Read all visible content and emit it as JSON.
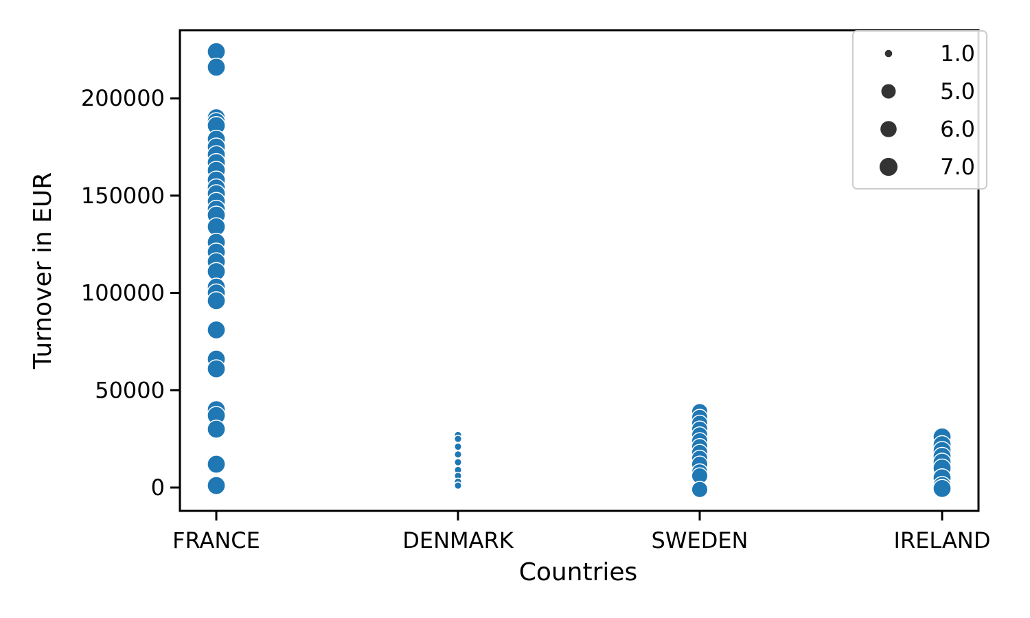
{
  "chart_data": {
    "type": "scatter",
    "xlabel": "Countries",
    "ylabel": "Turnover in EUR",
    "categories": [
      "FRANCE",
      "DENMARK",
      "SWEDEN",
      "IRELAND"
    ],
    "y_ticks": [
      0,
      50000,
      100000,
      150000,
      200000
    ],
    "y_tick_labels": [
      "0",
      "50000",
      "100000",
      "150000",
      "200000"
    ],
    "ylim": [
      -12000,
      235000
    ],
    "grid": false,
    "color": "#1f77b4",
    "legend": {
      "placement": "top-right",
      "size_field_values": [
        1.0,
        5.0,
        6.0,
        7.0
      ],
      "labels": [
        "1.0",
        "5.0",
        "6.0",
        "7.0"
      ],
      "marker_color": "#333333"
    },
    "points": [
      {
        "x": "FRANCE",
        "y": 224000,
        "size": 7.0
      },
      {
        "x": "FRANCE",
        "y": 216000,
        "size": 7.0
      },
      {
        "x": "FRANCE",
        "y": 190000,
        "size": 7.0
      },
      {
        "x": "FRANCE",
        "y": 188000,
        "size": 7.0
      },
      {
        "x": "FRANCE",
        "y": 186000,
        "size": 7.0
      },
      {
        "x": "FRANCE",
        "y": 179000,
        "size": 7.0
      },
      {
        "x": "FRANCE",
        "y": 175000,
        "size": 7.0
      },
      {
        "x": "FRANCE",
        "y": 171000,
        "size": 7.0
      },
      {
        "x": "FRANCE",
        "y": 167000,
        "size": 7.0
      },
      {
        "x": "FRANCE",
        "y": 163000,
        "size": 7.0
      },
      {
        "x": "FRANCE",
        "y": 158000,
        "size": 7.0
      },
      {
        "x": "FRANCE",
        "y": 154000,
        "size": 7.0
      },
      {
        "x": "FRANCE",
        "y": 151000,
        "size": 7.0
      },
      {
        "x": "FRANCE",
        "y": 147000,
        "size": 7.0
      },
      {
        "x": "FRANCE",
        "y": 143000,
        "size": 7.0
      },
      {
        "x": "FRANCE",
        "y": 140000,
        "size": 7.0
      },
      {
        "x": "FRANCE",
        "y": 134000,
        "size": 7.0
      },
      {
        "x": "FRANCE",
        "y": 126000,
        "size": 7.0
      },
      {
        "x": "FRANCE",
        "y": 121000,
        "size": 7.0
      },
      {
        "x": "FRANCE",
        "y": 116000,
        "size": 7.0
      },
      {
        "x": "FRANCE",
        "y": 111000,
        "size": 7.0
      },
      {
        "x": "FRANCE",
        "y": 103000,
        "size": 7.0
      },
      {
        "x": "FRANCE",
        "y": 100000,
        "size": 7.0
      },
      {
        "x": "FRANCE",
        "y": 96000,
        "size": 7.0
      },
      {
        "x": "FRANCE",
        "y": 81000,
        "size": 7.0
      },
      {
        "x": "FRANCE",
        "y": 66000,
        "size": 7.0
      },
      {
        "x": "FRANCE",
        "y": 61000,
        "size": 7.0
      },
      {
        "x": "FRANCE",
        "y": 40000,
        "size": 7.0
      },
      {
        "x": "FRANCE",
        "y": 37000,
        "size": 7.0
      },
      {
        "x": "FRANCE",
        "y": 30000,
        "size": 7.0
      },
      {
        "x": "FRANCE",
        "y": 12000,
        "size": 7.0
      },
      {
        "x": "FRANCE",
        "y": 1000,
        "size": 7.0
      },
      {
        "x": "DENMARK",
        "y": 27000,
        "size": 1.0
      },
      {
        "x": "DENMARK",
        "y": 25000,
        "size": 1.0
      },
      {
        "x": "DENMARK",
        "y": 21000,
        "size": 1.0
      },
      {
        "x": "DENMARK",
        "y": 17000,
        "size": 1.0
      },
      {
        "x": "DENMARK",
        "y": 13000,
        "size": 1.0
      },
      {
        "x": "DENMARK",
        "y": 9000,
        "size": 1.0
      },
      {
        "x": "DENMARK",
        "y": 6000,
        "size": 1.0
      },
      {
        "x": "DENMARK",
        "y": 3000,
        "size": 1.0
      },
      {
        "x": "DENMARK",
        "y": 1000,
        "size": 1.0
      },
      {
        "x": "SWEDEN",
        "y": 39000,
        "size": 6.0
      },
      {
        "x": "SWEDEN",
        "y": 36000,
        "size": 6.0
      },
      {
        "x": "SWEDEN",
        "y": 33000,
        "size": 6.0
      },
      {
        "x": "SWEDEN",
        "y": 30000,
        "size": 6.0
      },
      {
        "x": "SWEDEN",
        "y": 27000,
        "size": 6.0
      },
      {
        "x": "SWEDEN",
        "y": 24000,
        "size": 6.0
      },
      {
        "x": "SWEDEN",
        "y": 21000,
        "size": 6.0
      },
      {
        "x": "SWEDEN",
        "y": 18000,
        "size": 6.0
      },
      {
        "x": "SWEDEN",
        "y": 15000,
        "size": 6.0
      },
      {
        "x": "SWEDEN",
        "y": 12000,
        "size": 6.0
      },
      {
        "x": "SWEDEN",
        "y": 8000,
        "size": 6.0
      },
      {
        "x": "SWEDEN",
        "y": 6000,
        "size": 6.0
      },
      {
        "x": "SWEDEN",
        "y": -1000,
        "size": 6.0
      },
      {
        "x": "IRELAND",
        "y": 26000,
        "size": 7.0
      },
      {
        "x": "IRELAND",
        "y": 22000,
        "size": 7.0
      },
      {
        "x": "IRELAND",
        "y": 19000,
        "size": 7.0
      },
      {
        "x": "IRELAND",
        "y": 16000,
        "size": 7.0
      },
      {
        "x": "IRELAND",
        "y": 13000,
        "size": 7.0
      },
      {
        "x": "IRELAND",
        "y": 10000,
        "size": 7.0
      },
      {
        "x": "IRELAND",
        "y": 5000,
        "size": 7.0
      },
      {
        "x": "IRELAND",
        "y": 1000,
        "size": 7.0
      },
      {
        "x": "IRELAND",
        "y": -500,
        "size": 7.0
      }
    ]
  }
}
